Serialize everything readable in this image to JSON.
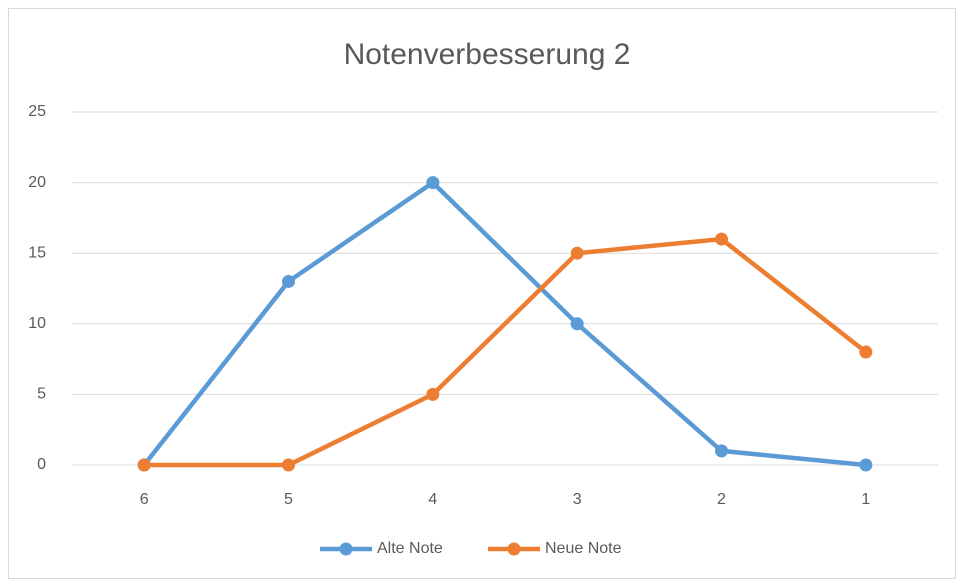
{
  "chart_data": {
    "type": "line",
    "title": "Notenverbesserung 2",
    "categories": [
      "6",
      "5",
      "4",
      "3",
      "2",
      "1"
    ],
    "series": [
      {
        "name": "Alte Note",
        "color": "#5b9bd5",
        "values": [
          0,
          13,
          20,
          10,
          1,
          0
        ]
      },
      {
        "name": "Neue Note",
        "color": "#ed7d31",
        "values": [
          0,
          0,
          5,
          15,
          16,
          8
        ]
      }
    ],
    "ylim": [
      0,
      25
    ],
    "yticks": [
      0,
      5,
      10,
      15,
      20,
      25
    ],
    "grid": true,
    "legend": "bottom"
  }
}
